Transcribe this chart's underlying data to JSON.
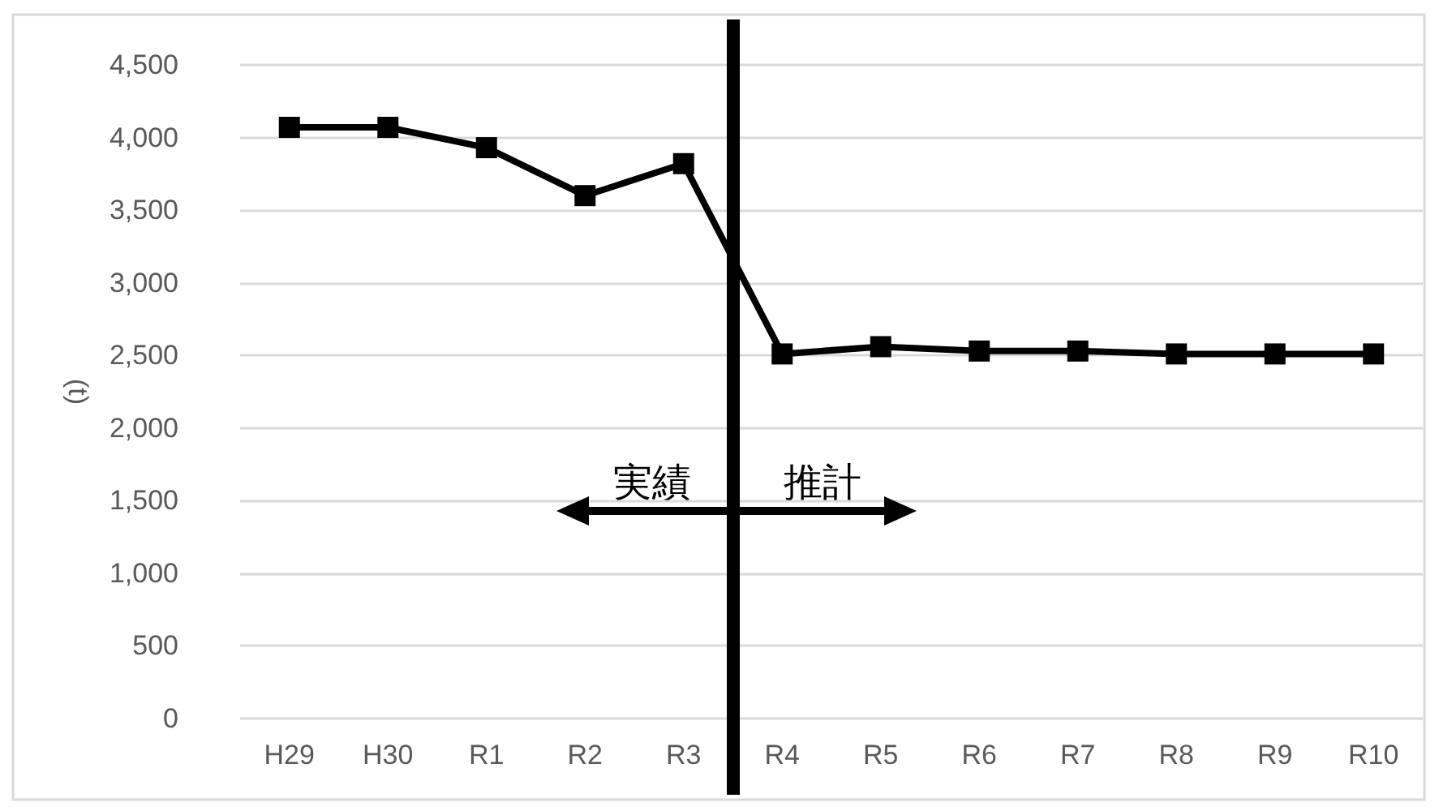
{
  "chart_data": {
    "type": "line",
    "ylabel": "(t)",
    "categories": [
      "H29",
      "H30",
      "R1",
      "R2",
      "R3",
      "R4",
      "R5",
      "R6",
      "R7",
      "R8",
      "R9",
      "R10"
    ],
    "series": [
      {
        "color": "#000000",
        "values": [
          4070,
          4070,
          3930,
          3600,
          3820,
          2510,
          2560,
          2530,
          2530,
          2510,
          2510,
          2510
        ]
      }
    ],
    "ylim": [
      0,
      4500
    ],
    "yticks": [
      0,
      500,
      {
        "value": 1000,
        "label": "1,000"
      },
      {
        "value": 1500,
        "label": "1,500"
      },
      {
        "value": 2000,
        "label": "2,000"
      },
      {
        "value": 2500,
        "label": "2,500"
      },
      {
        "value": 3000,
        "label": "3,000"
      },
      {
        "value": 3500,
        "label": "3,500"
      },
      {
        "value": 4000,
        "label": "4,000"
      },
      {
        "value": 4500,
        "label": "4,500"
      }
    ],
    "grid": "y",
    "marker": "square",
    "line_style": "solid",
    "ref_lines": [
      {
        "axis": "x",
        "value": "R4",
        "color": "#000000",
        "line_style": "solid"
      }
    ],
    "annotations": [
      "実績",
      "推計"
    ]
  }
}
